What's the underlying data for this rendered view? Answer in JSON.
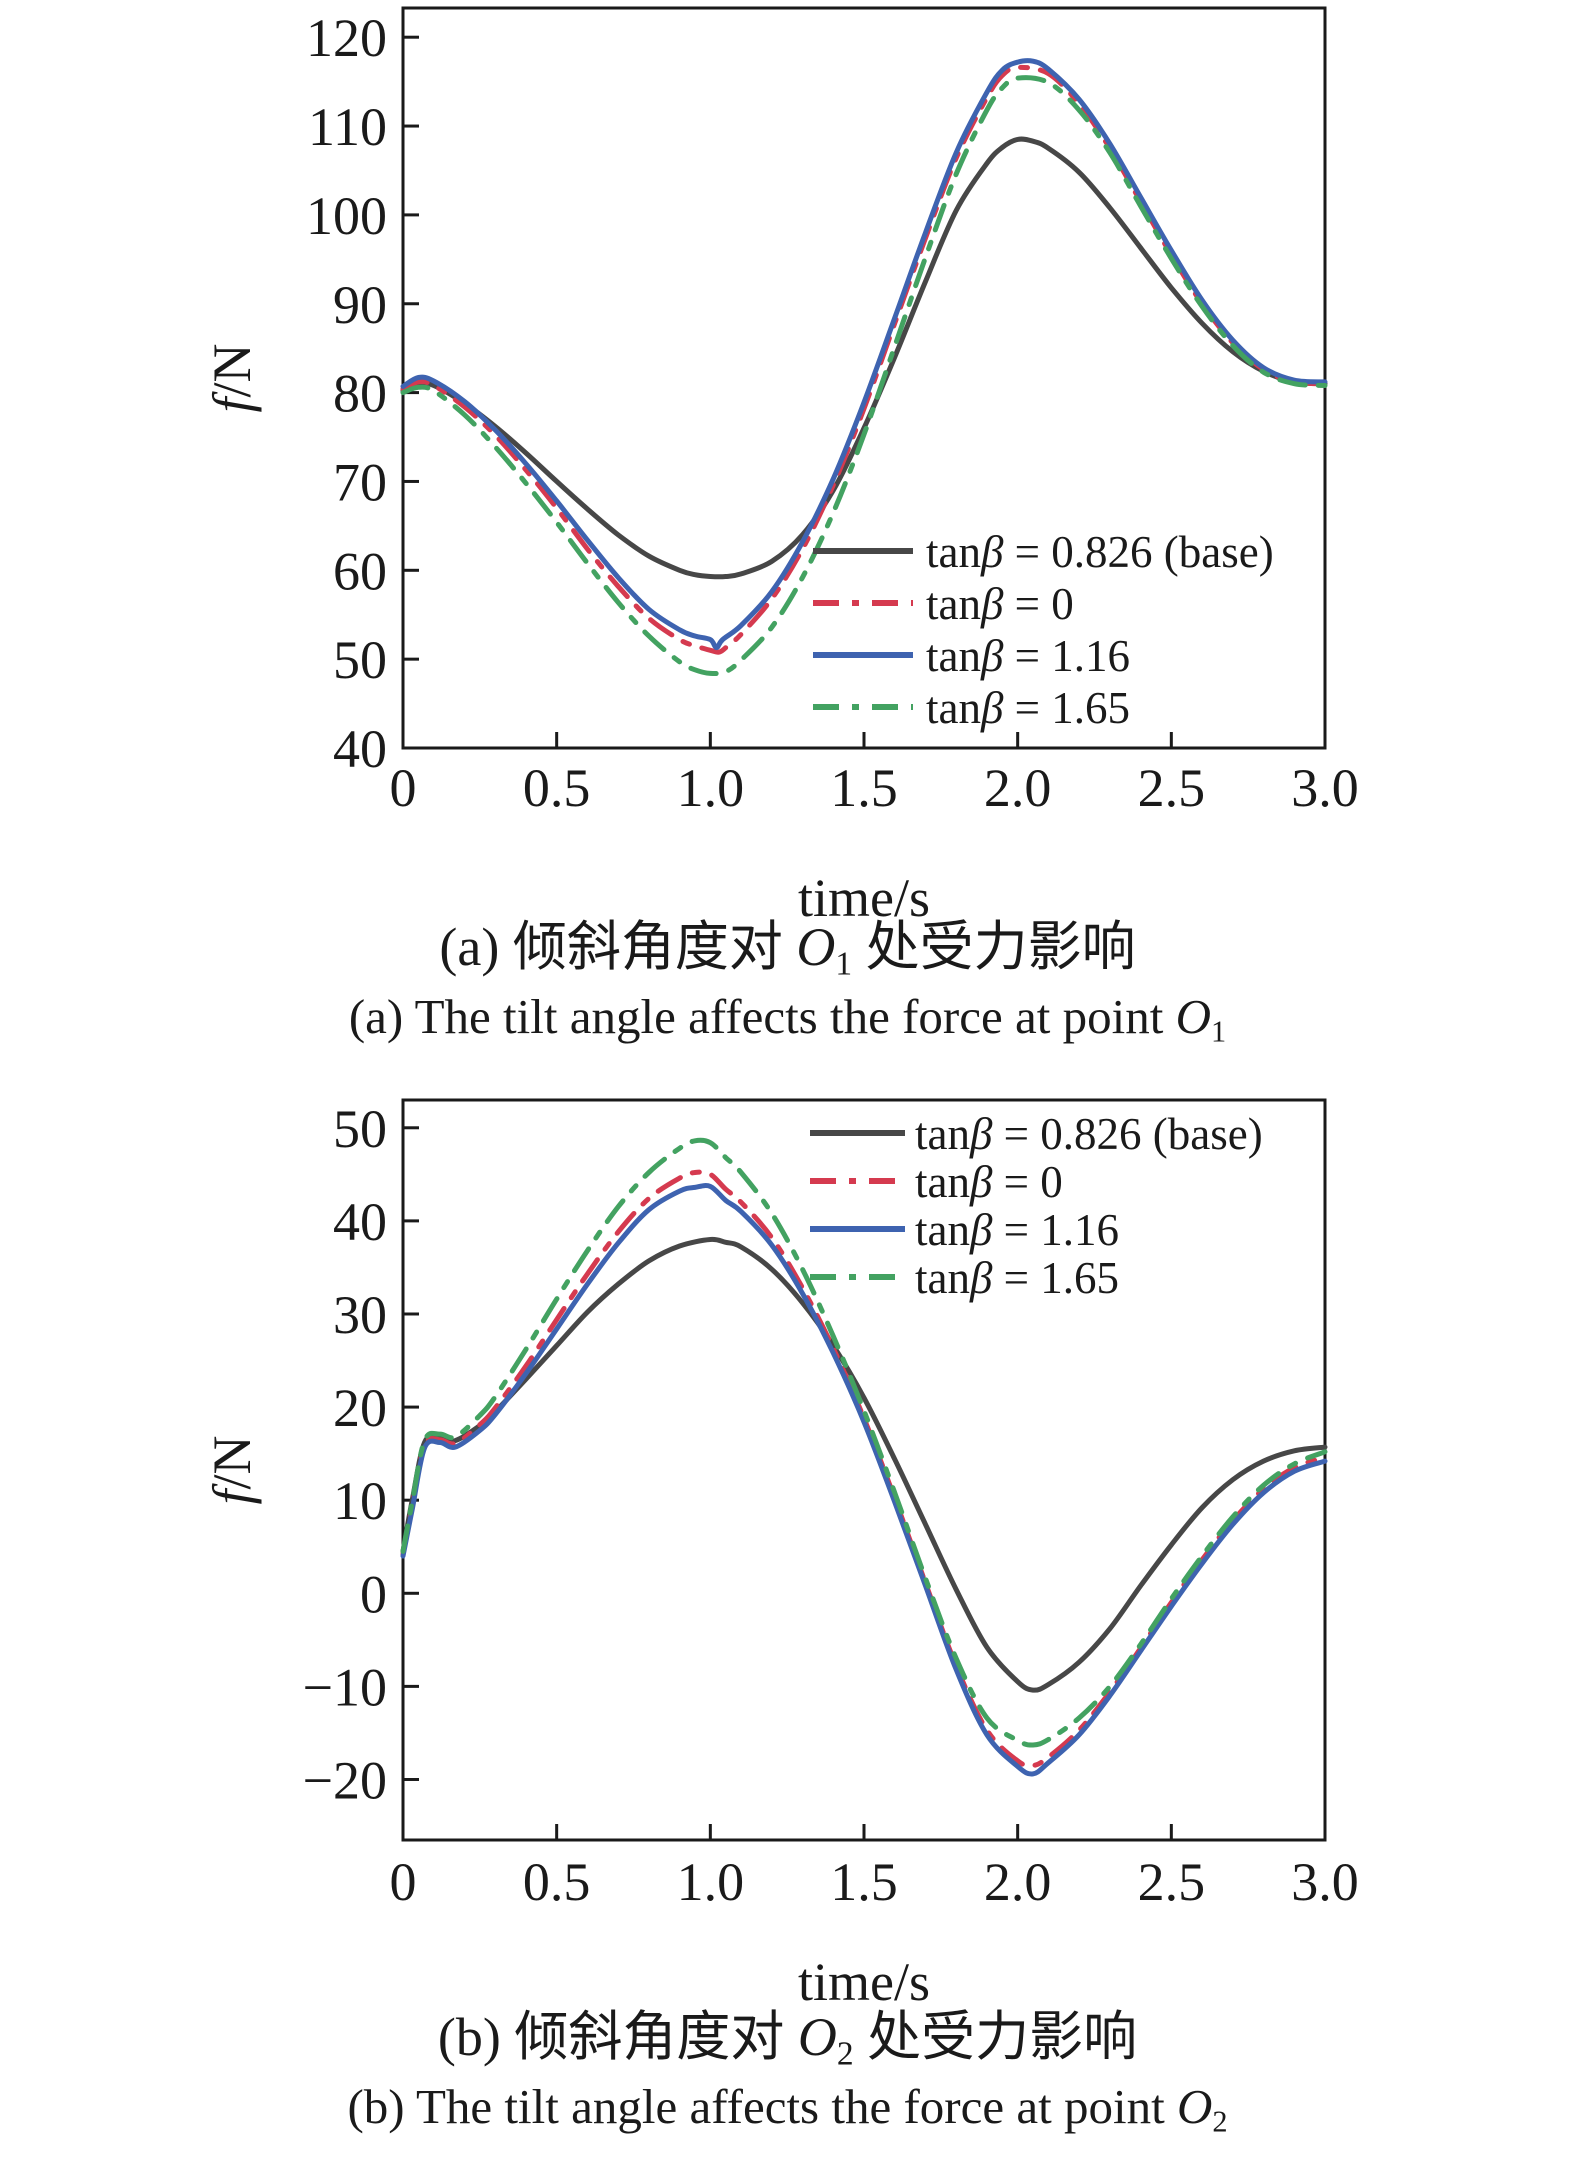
{
  "page": {
    "background": "#ffffff",
    "axis_color": "#1a1a1a"
  },
  "captions": {
    "a": {
      "zh_prefix": "(a) 倾斜角度对 ",
      "symbol": "O",
      "sub": "1",
      "zh_suffix": " 处受力影响",
      "en_prefix": "(a) The tilt angle affects the force at point "
    },
    "b": {
      "zh_prefix": "(b) 倾斜角度对 ",
      "symbol": "O",
      "sub": "2",
      "zh_suffix": " 处受力影响",
      "en_prefix": "(b) The tilt angle affects the force at point "
    }
  },
  "chart_data": [
    {
      "id": "a",
      "type": "line",
      "title": "",
      "xlabel": "time/s",
      "ylabel": "f/N",
      "xlim": [
        0,
        3.0
      ],
      "ylim": [
        40,
        120
      ],
      "grid": false,
      "legend_position": "inside lower right",
      "xticks": [
        {
          "v": 0,
          "label": "0"
        },
        {
          "v": 0.5,
          "label": "0.5"
        },
        {
          "v": 1.0,
          "label": "1.0"
        },
        {
          "v": 1.5,
          "label": "1.5"
        },
        {
          "v": 2.0,
          "label": "2.0"
        },
        {
          "v": 2.5,
          "label": "2.5"
        },
        {
          "v": 3.0,
          "label": "3.0"
        }
      ],
      "yticks": [
        {
          "v": 40,
          "label": "40"
        },
        {
          "v": 50,
          "label": "50"
        },
        {
          "v": 60,
          "label": "60"
        },
        {
          "v": 70,
          "label": "70"
        },
        {
          "v": 80,
          "label": "80"
        },
        {
          "v": 90,
          "label": "90"
        },
        {
          "v": 100,
          "label": "100"
        },
        {
          "v": 110,
          "label": "110"
        },
        {
          "v": 120,
          "label": "120"
        }
      ],
      "series": [
        {
          "name": "tanβ = 0.826 (base)",
          "color": "#474747",
          "style": "solid",
          "x": [
            0,
            0.05,
            0.1,
            0.2,
            0.3,
            0.4,
            0.5,
            0.6,
            0.7,
            0.8,
            0.9,
            0.95,
            1.0,
            1.05,
            1.1,
            1.2,
            1.3,
            1.4,
            1.5,
            1.6,
            1.7,
            1.8,
            1.9,
            1.95,
            2.0,
            2.05,
            2.1,
            2.2,
            2.3,
            2.4,
            2.5,
            2.6,
            2.7,
            2.8,
            2.9,
            3.0
          ],
          "y": [
            80.2,
            81.0,
            80.8,
            78.8,
            76.2,
            73.2,
            70.0,
            66.9,
            64.0,
            61.6,
            60.0,
            59.5,
            59.3,
            59.3,
            59.6,
            61.0,
            64.0,
            69.0,
            76.0,
            84.0,
            92.5,
            100.5,
            105.8,
            107.6,
            108.5,
            108.3,
            107.5,
            104.8,
            100.8,
            96.3,
            91.8,
            87.8,
            84.6,
            82.4,
            81.2,
            81.0
          ]
        },
        {
          "name": "tanβ = 0",
          "color": "#d53a4f",
          "style": "dashdot",
          "x": [
            0,
            0.05,
            0.1,
            0.2,
            0.3,
            0.4,
            0.5,
            0.6,
            0.7,
            0.8,
            0.9,
            0.95,
            1.0,
            1.03,
            1.06,
            1.1,
            1.2,
            1.3,
            1.4,
            1.5,
            1.6,
            1.7,
            1.8,
            1.9,
            1.95,
            2.0,
            2.1,
            2.2,
            2.3,
            2.4,
            2.5,
            2.6,
            2.7,
            2.8,
            2.9,
            3.0
          ],
          "y": [
            80.4,
            81.2,
            80.8,
            78.4,
            75.2,
            71.3,
            67.0,
            62.4,
            58.2,
            54.6,
            52.2,
            51.5,
            51.0,
            50.8,
            51.6,
            52.8,
            56.8,
            62.4,
            69.6,
            78.2,
            87.8,
            97.4,
            106.4,
            113.2,
            115.7,
            116.6,
            115.9,
            112.5,
            107.5,
            101.5,
            95.5,
            90.0,
            85.6,
            82.6,
            81.2,
            81.0
          ]
        },
        {
          "name": "tanβ = 1.16",
          "color": "#3e63b0",
          "style": "solid",
          "x": [
            0,
            0.05,
            0.1,
            0.2,
            0.3,
            0.4,
            0.5,
            0.6,
            0.7,
            0.8,
            0.9,
            0.95,
            1.0,
            1.02,
            1.04,
            1.1,
            1.2,
            1.3,
            1.4,
            1.5,
            1.6,
            1.7,
            1.8,
            1.9,
            1.95,
            2.0,
            2.05,
            2.1,
            2.2,
            2.3,
            2.4,
            2.5,
            2.6,
            2.7,
            2.8,
            2.9,
            3.0
          ],
          "y": [
            80.7,
            81.7,
            81.3,
            79.0,
            75.8,
            72.0,
            67.8,
            63.4,
            59.2,
            55.6,
            53.3,
            52.6,
            52.2,
            51.3,
            52.2,
            53.8,
            57.6,
            63.2,
            70.3,
            78.9,
            88.4,
            98.0,
            107.0,
            113.8,
            116.3,
            117.2,
            117.3,
            116.4,
            113.0,
            108.0,
            102.0,
            96.0,
            90.4,
            85.9,
            82.8,
            81.4,
            81.2
          ]
        },
        {
          "name": "tanβ = 1.65",
          "color": "#43a261",
          "style": "dashdot",
          "x": [
            0,
            0.05,
            0.1,
            0.2,
            0.3,
            0.4,
            0.5,
            0.6,
            0.7,
            0.8,
            0.9,
            0.95,
            1.0,
            1.05,
            1.1,
            1.2,
            1.3,
            1.4,
            1.5,
            1.6,
            1.7,
            1.8,
            1.9,
            1.95,
            2.0,
            2.1,
            2.2,
            2.3,
            2.4,
            2.5,
            2.6,
            2.7,
            2.8,
            2.9,
            3.0
          ],
          "y": [
            80.0,
            80.6,
            80.2,
            77.5,
            73.9,
            69.8,
            65.4,
            60.8,
            56.4,
            52.6,
            49.7,
            48.8,
            48.4,
            48.6,
            49.9,
            53.6,
            59.2,
            66.5,
            75.3,
            85.2,
            95.2,
            104.6,
            111.8,
            114.3,
            115.4,
            114.9,
            111.8,
            107.0,
            101.0,
            95.1,
            89.7,
            85.3,
            82.3,
            81.0,
            80.8
          ]
        }
      ]
    },
    {
      "id": "b",
      "type": "line",
      "title": "",
      "xlabel": "time/s",
      "ylabel": "f/N",
      "xlim": [
        0,
        3.0
      ],
      "ylim": [
        -20,
        50
      ],
      "grid": false,
      "legend_position": "inside upper right",
      "xticks": [
        {
          "v": 0,
          "label": "0"
        },
        {
          "v": 0.5,
          "label": "0.5"
        },
        {
          "v": 1.0,
          "label": "1.0"
        },
        {
          "v": 1.5,
          "label": "1.5"
        },
        {
          "v": 2.0,
          "label": "2.0"
        },
        {
          "v": 2.5,
          "label": "2.5"
        },
        {
          "v": 3.0,
          "label": "3.0"
        }
      ],
      "yticks": [
        {
          "v": -20,
          "label": "−20"
        },
        {
          "v": -10,
          "label": "−10"
        },
        {
          "v": 0,
          "label": "0"
        },
        {
          "v": 10,
          "label": "10"
        },
        {
          "v": 20,
          "label": "20"
        },
        {
          "v": 30,
          "label": "30"
        },
        {
          "v": 40,
          "label": "40"
        },
        {
          "v": 50,
          "label": "50"
        }
      ],
      "series": [
        {
          "name": "tanβ = 0.826 (base)",
          "color": "#474747",
          "style": "solid",
          "x": [
            0,
            0.03,
            0.07,
            0.12,
            0.17,
            0.25,
            0.3,
            0.4,
            0.5,
            0.6,
            0.7,
            0.8,
            0.9,
            1.0,
            1.05,
            1.1,
            1.2,
            1.3,
            1.4,
            1.5,
            1.6,
            1.7,
            1.8,
            1.9,
            2.0,
            2.05,
            2.1,
            2.2,
            2.3,
            2.4,
            2.5,
            2.6,
            2.7,
            2.8,
            2.9,
            3.0
          ],
          "y": [
            4.5,
            10.0,
            16.2,
            16.8,
            16.4,
            18.0,
            19.5,
            23.0,
            26.6,
            30.2,
            33.2,
            35.7,
            37.3,
            38.0,
            37.7,
            37.2,
            34.8,
            31.2,
            26.6,
            21.0,
            14.4,
            7.4,
            0.4,
            -5.8,
            -9.5,
            -10.4,
            -9.8,
            -7.4,
            -3.8,
            0.8,
            5.2,
            9.2,
            12.2,
            14.2,
            15.3,
            15.7
          ]
        },
        {
          "name": "tanβ = 0",
          "color": "#d53a4f",
          "style": "dashdot",
          "x": [
            0,
            0.03,
            0.07,
            0.12,
            0.17,
            0.25,
            0.3,
            0.4,
            0.5,
            0.6,
            0.7,
            0.8,
            0.9,
            0.95,
            1.0,
            1.05,
            1.1,
            1.2,
            1.3,
            1.4,
            1.5,
            1.6,
            1.7,
            1.8,
            1.9,
            2.0,
            2.05,
            2.1,
            2.2,
            2.3,
            2.4,
            2.5,
            2.6,
            2.7,
            2.8,
            2.9,
            3.0
          ],
          "y": [
            4.2,
            9.4,
            15.9,
            16.5,
            16.1,
            18.1,
            19.9,
            24.4,
            29.4,
            34.3,
            38.8,
            42.4,
            44.6,
            45.2,
            45.0,
            43.4,
            42.0,
            38.2,
            32.8,
            26.3,
            18.8,
            10.2,
            1.1,
            -7.8,
            -14.7,
            -18.0,
            -18.5,
            -17.6,
            -14.7,
            -10.6,
            -5.9,
            -1.0,
            3.6,
            7.8,
            11.2,
            13.5,
            14.6
          ]
        },
        {
          "name": "tanβ = 1.16",
          "color": "#3e63b0",
          "style": "solid",
          "x": [
            0,
            0.03,
            0.07,
            0.12,
            0.17,
            0.25,
            0.3,
            0.4,
            0.5,
            0.6,
            0.7,
            0.8,
            0.9,
            0.95,
            1.0,
            1.05,
            1.1,
            1.2,
            1.3,
            1.4,
            1.5,
            1.6,
            1.7,
            1.8,
            1.9,
            2.0,
            2.05,
            2.1,
            2.2,
            2.3,
            2.4,
            2.5,
            2.6,
            2.7,
            2.8,
            2.9,
            3.0
          ],
          "y": [
            4.0,
            9.0,
            15.6,
            16.2,
            15.7,
            17.5,
            19.2,
            23.6,
            28.4,
            33.2,
            37.6,
            41.2,
            43.2,
            43.6,
            43.7,
            42.2,
            41.0,
            37.4,
            32.2,
            25.8,
            18.4,
            9.8,
            0.8,
            -8.2,
            -15.2,
            -18.6,
            -19.4,
            -18.2,
            -15.2,
            -11.0,
            -6.2,
            -1.4,
            3.2,
            7.4,
            10.8,
            13.1,
            14.2
          ]
        },
        {
          "name": "tanβ = 1.65",
          "color": "#43a261",
          "style": "dashdot",
          "x": [
            0,
            0.03,
            0.07,
            0.12,
            0.17,
            0.25,
            0.3,
            0.4,
            0.5,
            0.6,
            0.7,
            0.8,
            0.9,
            0.95,
            1.0,
            1.05,
            1.1,
            1.2,
            1.3,
            1.4,
            1.5,
            1.6,
            1.7,
            1.8,
            1.9,
            2.0,
            2.05,
            2.1,
            2.2,
            2.3,
            2.4,
            2.5,
            2.6,
            2.7,
            2.8,
            2.9,
            3.0
          ],
          "y": [
            4.5,
            9.8,
            16.4,
            17.1,
            16.8,
            19.1,
            21.1,
            26.2,
            31.6,
            36.8,
            41.5,
            45.2,
            47.8,
            48.6,
            48.4,
            46.8,
            45.2,
            40.8,
            34.8,
            27.6,
            19.6,
            10.8,
            1.6,
            -7.0,
            -13.4,
            -15.8,
            -16.3,
            -15.7,
            -13.4,
            -10.0,
            -5.5,
            -0.6,
            4.0,
            8.2,
            11.6,
            13.9,
            15.2
          ]
        }
      ]
    }
  ]
}
